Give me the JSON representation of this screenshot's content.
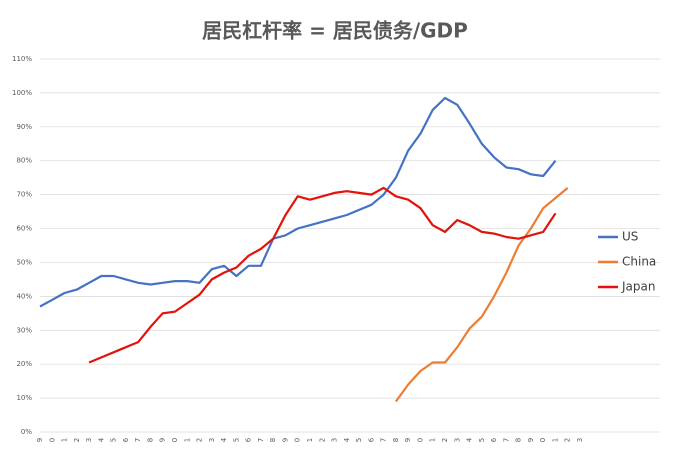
{
  "chart_data": {
    "type": "line",
    "title": "居民杠杆率 = 居民债务/GDP",
    "categories": [
      "9",
      "0",
      "1",
      "2",
      "3",
      "4",
      "5",
      "6",
      "7",
      "8",
      "9",
      "0",
      "1",
      "2",
      "3",
      "4",
      "5",
      "6",
      "7",
      "8",
      "9",
      "0",
      "1",
      "2",
      "3",
      "4",
      "5",
      "6",
      "7",
      "8",
      "9",
      "0",
      "1",
      "2",
      "3",
      "4",
      "5",
      "6",
      "7",
      "8",
      "9",
      "0",
      "1",
      "2",
      "3"
    ],
    "series": [
      {
        "name": "US",
        "color": "#4472c4",
        "values": [
          37,
          39,
          41,
          42,
          44,
          46,
          46,
          45,
          44,
          43.5,
          44,
          44.5,
          44.5,
          44,
          48,
          49,
          46,
          49,
          49,
          57,
          58,
          60,
          61,
          62,
          63,
          64,
          65.5,
          67,
          70,
          75,
          83,
          88,
          95,
          98.5,
          96.5,
          91,
          85,
          81,
          78,
          77.5,
          76,
          75.5,
          80,
          null,
          null
        ]
      },
      {
        "name": "China",
        "color": "#ed7d31",
        "values": [
          null,
          null,
          null,
          null,
          null,
          null,
          null,
          null,
          null,
          null,
          null,
          null,
          null,
          null,
          null,
          null,
          null,
          null,
          null,
          null,
          null,
          null,
          null,
          null,
          null,
          null,
          null,
          null,
          null,
          9,
          14,
          18,
          20.5,
          20.5,
          25,
          30.5,
          34,
          40,
          47,
          55,
          60,
          66,
          69,
          72,
          null
        ]
      },
      {
        "name": "Japan",
        "color": "#e3120b",
        "values": [
          null,
          null,
          null,
          null,
          20.5,
          22,
          23.5,
          25,
          26.5,
          31,
          35,
          35.5,
          38,
          40.5,
          45,
          47,
          48.5,
          52,
          54,
          57,
          64,
          69.5,
          68.5,
          69.5,
          70.5,
          71,
          70.5,
          70,
          72,
          69.5,
          68.5,
          66,
          61,
          59,
          62.5,
          61,
          59,
          58.5,
          57.5,
          57,
          58,
          59,
          64.5,
          null,
          null
        ]
      }
    ],
    "ylim": [
      0,
      110
    ],
    "yticks": [
      {
        "value": 0,
        "label": "0%"
      },
      {
        "value": 10,
        "label": "10%"
      },
      {
        "value": 20,
        "label": "20%"
      },
      {
        "value": 30,
        "label": "30%"
      },
      {
        "value": 40,
        "label": "40%"
      },
      {
        "value": 50,
        "label": "50%"
      },
      {
        "value": 60,
        "label": "60%"
      },
      {
        "value": 70,
        "label": "70%"
      },
      {
        "value": 80,
        "label": "80%"
      },
      {
        "value": 90,
        "label": "90%"
      },
      {
        "value": 100,
        "label": "100%"
      },
      {
        "value": 110,
        "label": "110%"
      }
    ],
    "grid": true,
    "legend": "right"
  }
}
